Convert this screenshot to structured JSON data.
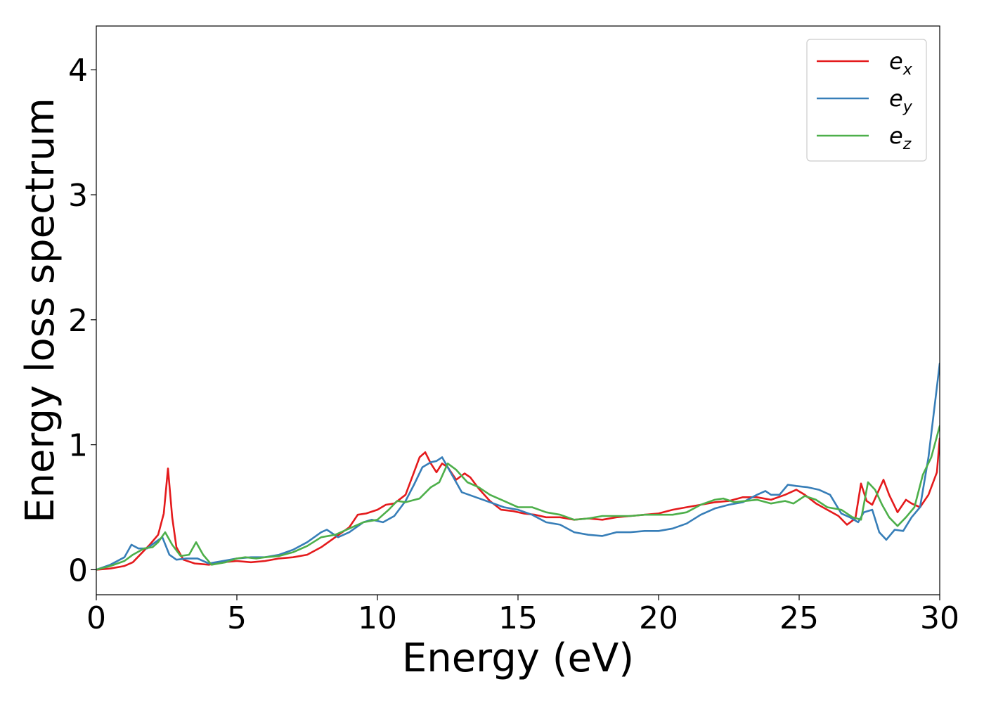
{
  "chart_data": {
    "type": "line",
    "xlabel": "Energy (eV)",
    "ylabel": "Energy loss spectrum",
    "xlim": [
      0,
      30
    ],
    "ylim": [
      -0.2,
      4.35
    ],
    "xticks": [
      "0",
      "5",
      "10",
      "15",
      "20",
      "25",
      "30"
    ],
    "yticks": [
      "0",
      "1",
      "2",
      "3",
      "4"
    ],
    "grid": false,
    "legend_position": "top-right",
    "series": [
      {
        "name": "ex",
        "legend_base": "e",
        "legend_sub": "x",
        "color": "#e41a1c",
        "x": [
          0,
          0.5,
          1.0,
          1.3,
          1.6,
          1.9,
          2.2,
          2.4,
          2.55,
          2.7,
          2.85,
          3.1,
          3.5,
          4.0,
          4.5,
          5.0,
          5.5,
          6.0,
          6.5,
          7.0,
          7.5,
          8.0,
          8.5,
          9.0,
          9.3,
          9.6,
          10.0,
          10.3,
          10.6,
          11.0,
          11.3,
          11.5,
          11.7,
          11.9,
          12.1,
          12.3,
          12.5,
          12.8,
          13.1,
          13.3,
          13.6,
          14.0,
          14.4,
          14.8,
          15.2,
          15.6,
          16.0,
          16.5,
          17.0,
          17.5,
          18.0,
          18.5,
          19.0,
          19.5,
          20.0,
          20.5,
          21.0,
          21.5,
          22.0,
          22.5,
          23.0,
          23.5,
          24.0,
          24.5,
          24.9,
          25.2,
          25.6,
          26.0,
          26.4,
          26.7,
          27.0,
          27.2,
          27.4,
          27.6,
          27.8,
          28.0,
          28.2,
          28.5,
          28.8,
          29.0,
          29.3,
          29.6,
          29.9,
          30.0
        ],
        "y": [
          0.0,
          0.01,
          0.03,
          0.06,
          0.13,
          0.2,
          0.28,
          0.45,
          0.81,
          0.42,
          0.18,
          0.08,
          0.05,
          0.04,
          0.06,
          0.07,
          0.06,
          0.07,
          0.09,
          0.1,
          0.12,
          0.18,
          0.26,
          0.34,
          0.44,
          0.45,
          0.48,
          0.52,
          0.53,
          0.6,
          0.78,
          0.9,
          0.94,
          0.85,
          0.78,
          0.85,
          0.82,
          0.72,
          0.77,
          0.74,
          0.65,
          0.55,
          0.48,
          0.47,
          0.45,
          0.44,
          0.42,
          0.42,
          0.4,
          0.41,
          0.4,
          0.42,
          0.43,
          0.44,
          0.45,
          0.48,
          0.5,
          0.52,
          0.54,
          0.55,
          0.58,
          0.58,
          0.56,
          0.6,
          0.64,
          0.6,
          0.53,
          0.48,
          0.43,
          0.36,
          0.41,
          0.69,
          0.55,
          0.52,
          0.62,
          0.72,
          0.6,
          0.46,
          0.56,
          0.53,
          0.5,
          0.6,
          0.78,
          1.05
        ]
      },
      {
        "name": "ey",
        "legend_base": "e",
        "legend_sub": "y",
        "color": "#377eb8",
        "x": [
          0,
          0.5,
          1.0,
          1.25,
          1.5,
          1.8,
          2.1,
          2.35,
          2.6,
          2.85,
          3.2,
          3.6,
          4.0,
          4.5,
          5.0,
          5.5,
          6.0,
          6.5,
          7.0,
          7.5,
          8.0,
          8.2,
          8.6,
          9.0,
          9.5,
          9.8,
          10.2,
          10.6,
          11.0,
          11.3,
          11.6,
          11.9,
          12.1,
          12.3,
          12.6,
          13.0,
          13.5,
          14.0,
          14.5,
          15.0,
          15.5,
          16.0,
          16.5,
          17.0,
          17.5,
          18.0,
          18.5,
          19.0,
          19.5,
          20.0,
          20.5,
          21.0,
          21.5,
          22.0,
          22.5,
          23.0,
          23.5,
          23.8,
          24.0,
          24.3,
          24.6,
          24.9,
          25.3,
          25.7,
          26.1,
          26.5,
          26.8,
          27.1,
          27.3,
          27.6,
          27.85,
          28.1,
          28.4,
          28.7,
          29.0,
          29.3,
          29.6,
          30.0
        ],
        "y": [
          0.0,
          0.04,
          0.1,
          0.2,
          0.17,
          0.17,
          0.22,
          0.26,
          0.12,
          0.08,
          0.09,
          0.09,
          0.05,
          0.07,
          0.09,
          0.1,
          0.1,
          0.12,
          0.16,
          0.22,
          0.3,
          0.32,
          0.26,
          0.3,
          0.38,
          0.4,
          0.38,
          0.43,
          0.55,
          0.68,
          0.82,
          0.86,
          0.87,
          0.9,
          0.78,
          0.62,
          0.58,
          0.54,
          0.5,
          0.48,
          0.44,
          0.38,
          0.36,
          0.3,
          0.28,
          0.27,
          0.3,
          0.3,
          0.31,
          0.31,
          0.33,
          0.37,
          0.44,
          0.49,
          0.52,
          0.54,
          0.6,
          0.63,
          0.6,
          0.6,
          0.68,
          0.67,
          0.66,
          0.64,
          0.6,
          0.45,
          0.42,
          0.38,
          0.46,
          0.48,
          0.3,
          0.24,
          0.32,
          0.31,
          0.42,
          0.5,
          0.9,
          1.65
        ]
      },
      {
        "name": "ez",
        "legend_base": "e",
        "legend_sub": "z",
        "color": "#4daf4a",
        "x": [
          0,
          0.5,
          1.0,
          1.3,
          1.7,
          2.0,
          2.2,
          2.45,
          2.7,
          3.0,
          3.3,
          3.55,
          3.8,
          4.1,
          4.6,
          5.0,
          5.3,
          5.7,
          6.0,
          6.5,
          7.0,
          7.5,
          8.0,
          8.5,
          9.0,
          9.5,
          10.0,
          10.4,
          10.7,
          11.0,
          11.5,
          11.9,
          12.2,
          12.5,
          12.8,
          13.2,
          13.6,
          14.0,
          14.5,
          15.0,
          15.5,
          16.0,
          16.5,
          17.0,
          17.5,
          18.0,
          18.5,
          19.0,
          19.5,
          20.0,
          20.5,
          21.0,
          21.5,
          22.0,
          22.3,
          22.7,
          23.1,
          23.5,
          24.0,
          24.5,
          24.8,
          25.2,
          25.6,
          26.0,
          26.5,
          26.9,
          27.2,
          27.45,
          27.7,
          27.95,
          28.2,
          28.5,
          28.8,
          29.1,
          29.4,
          29.7,
          30.0
        ],
        "y": [
          0.0,
          0.03,
          0.07,
          0.12,
          0.17,
          0.18,
          0.22,
          0.3,
          0.2,
          0.11,
          0.12,
          0.22,
          0.12,
          0.04,
          0.06,
          0.09,
          0.1,
          0.09,
          0.1,
          0.11,
          0.14,
          0.19,
          0.26,
          0.28,
          0.33,
          0.38,
          0.4,
          0.48,
          0.55,
          0.54,
          0.57,
          0.66,
          0.7,
          0.85,
          0.8,
          0.7,
          0.66,
          0.6,
          0.55,
          0.5,
          0.5,
          0.46,
          0.44,
          0.4,
          0.41,
          0.43,
          0.43,
          0.43,
          0.44,
          0.44,
          0.44,
          0.46,
          0.52,
          0.56,
          0.57,
          0.54,
          0.55,
          0.56,
          0.53,
          0.55,
          0.53,
          0.59,
          0.56,
          0.5,
          0.48,
          0.42,
          0.4,
          0.7,
          0.64,
          0.52,
          0.42,
          0.35,
          0.42,
          0.5,
          0.76,
          0.9,
          1.15
        ]
      }
    ]
  }
}
